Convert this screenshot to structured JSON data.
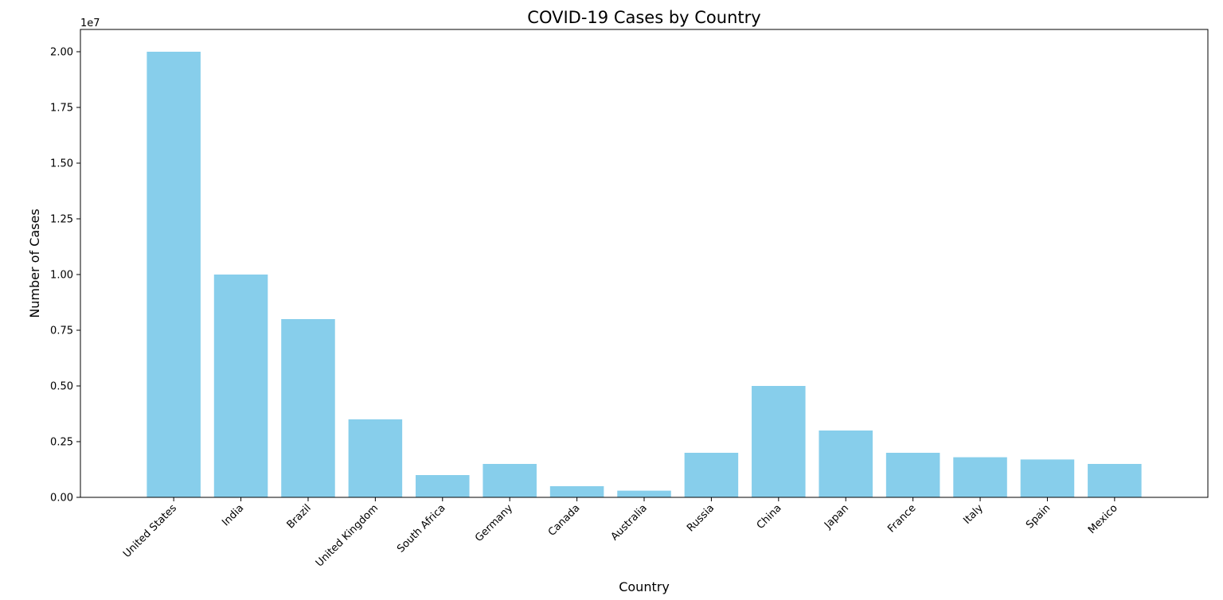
{
  "chart_data": {
    "type": "bar",
    "title": "COVID-19 Cases by Country",
    "xlabel": "Country",
    "ylabel": "Number of Cases",
    "y_scale_label": "1e7",
    "categories": [
      "United States",
      "India",
      "Brazil",
      "United Kingdom",
      "South Africa",
      "Germany",
      "Canada",
      "Australia",
      "Russia",
      "China",
      "Japan",
      "France",
      "Italy",
      "Spain",
      "Mexico"
    ],
    "values": [
      20000000,
      10000000,
      8000000,
      3500000,
      1000000,
      1500000,
      500000,
      300000,
      2000000,
      5000000,
      3000000,
      2000000,
      1800000,
      1700000,
      1500000
    ],
    "ylim": [
      0,
      21000000
    ],
    "yticks": [
      0,
      2500000,
      5000000,
      7500000,
      10000000,
      12500000,
      15000000,
      17500000,
      20000000
    ],
    "ytick_labels": [
      "0.00",
      "0.25",
      "0.50",
      "0.75",
      "1.00",
      "1.25",
      "1.50",
      "1.75",
      "2.00"
    ],
    "grid": false,
    "bar_color": "#87ceeb"
  }
}
